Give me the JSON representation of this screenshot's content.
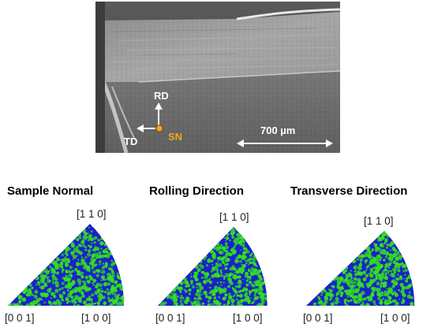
{
  "sem": {
    "rd_label": "RD",
    "td_label": "TD",
    "sn_label": "SN",
    "scale_label": "700 µm",
    "colors": {
      "arrow": "#ffffff",
      "sn": "#f0a81c"
    }
  },
  "panels": [
    {
      "title": "Sample Normal",
      "pole_top": "[1 1 0]",
      "pole_left": "[0 0 1]",
      "pole_right": "[1 0 0]"
    },
    {
      "title": "Rolling Direction",
      "pole_top": "[1 1 0]",
      "pole_left": "[0 0 1]",
      "pole_right": "[1 0 0]"
    },
    {
      "title": "Transverse Direction",
      "pole_top": "[1 1 0]",
      "pole_left": "[0 0 1]",
      "pole_right": "[1 0 0]"
    }
  ],
  "colors": {
    "map_blue": "#1a22c8",
    "map_green": "#33e01e"
  }
}
